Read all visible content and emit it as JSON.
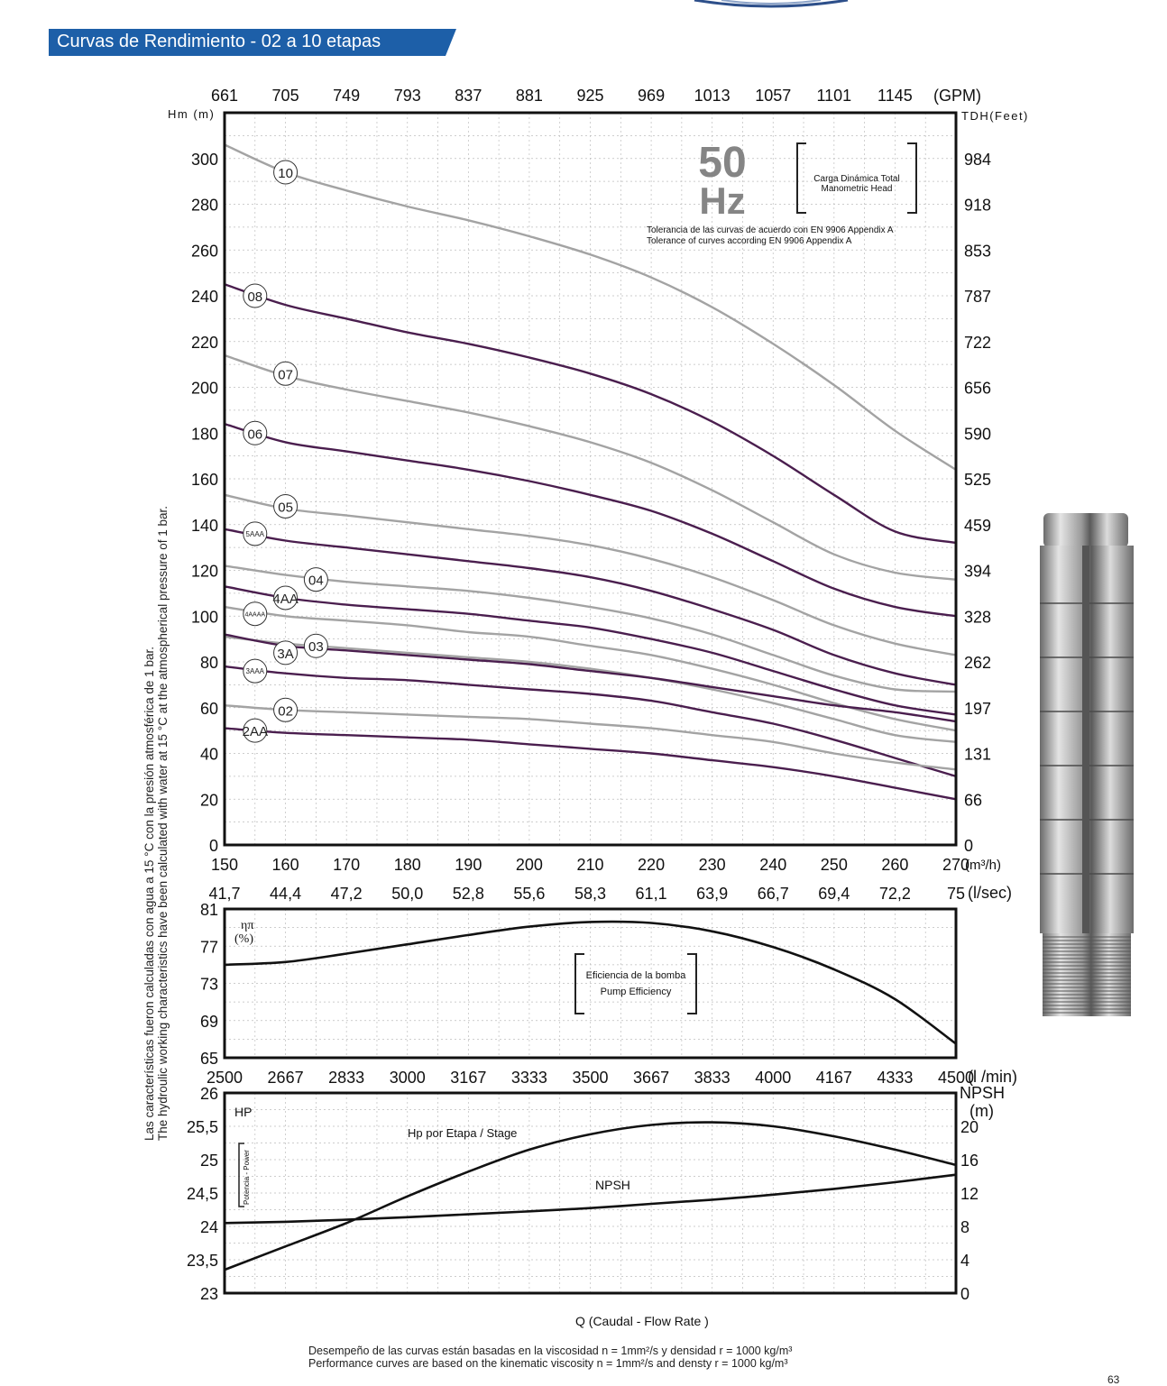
{
  "header": {
    "title": "Curvas de Rendimiento - 02 a 10 etapas"
  },
  "side_note": {
    "line1": "Las características fueron calculadas con agua a 15 °C  con la presión atmosférica de 1 bar.",
    "line2": "The hydroulic working characteristics have been calculated with water at 15 °C at the atmospherical pressure of 1 bar."
  },
  "footer": {
    "line1": "Desempeño de las curvas están basadas en la viscosidad n = 1mm²/s y densidad r = 1000 kg/m³",
    "line2": "Performance curves are based on the kinematic viscosity n = 1mm²/s and densty r = 1000 kg/m³",
    "page": "63"
  },
  "colors": {
    "banner": "#1d5fa8",
    "purple": "#4a1e4e",
    "gray": "#a3a3a3",
    "frame": "#111111"
  },
  "chart_data": [
    {
      "type": "line",
      "id": "head",
      "ylabel": "Hm (m)",
      "y2label": "TDH(Feet)",
      "xlabel": "(m³/h)",
      "x2label": "(GPM)",
      "xlim": [
        150,
        270
      ],
      "ylim": [
        0,
        320
      ],
      "x_ticks": [
        "150",
        "160",
        "170",
        "180",
        "190",
        "200",
        "210",
        "220",
        "230",
        "240",
        "250",
        "260",
        "270"
      ],
      "x2_ticks": [
        "661",
        "705",
        "749",
        "793",
        "837",
        "881",
        "925",
        "969",
        "1013",
        "1057",
        "1101",
        "1145"
      ],
      "y_ticks": [
        "0",
        "20",
        "40",
        "60",
        "80",
        "100",
        "120",
        "140",
        "160",
        "180",
        "200",
        "220",
        "240",
        "260",
        "280",
        "300"
      ],
      "y2_ticks": [
        "0",
        "66",
        "131",
        "197",
        "262",
        "328",
        "394",
        "459",
        "525",
        "590",
        "656",
        "722",
        "787",
        "853",
        "918",
        "984"
      ],
      "lps_label": "(l/sec)",
      "lps_ticks": [
        "41,7",
        "44,4",
        "47,2",
        "50,0",
        "52,8",
        "55,6",
        "58,3",
        "61,1",
        "63,9",
        "66,7",
        "69,4",
        "72,2",
        "75"
      ],
      "hz": {
        "value": "50",
        "unit": "Hz"
      },
      "legend_bracket": {
        "line1": "Carga Dinámica Total",
        "line2": "Manometric Head"
      },
      "tolerance": {
        "line1": "Tolerancia de las curvas de acuerdo con EN 9906 Appendix A",
        "line2": "Tolerance of curves according EN 9906 Appendix A"
      },
      "x": [
        150,
        160,
        170,
        180,
        190,
        200,
        210,
        220,
        230,
        240,
        250,
        260,
        270
      ],
      "series": [
        {
          "name": "10",
          "color": "gray",
          "label_x": 160,
          "label_y": 294,
          "values": [
            306,
            294,
            286,
            279,
            273,
            266,
            258,
            248,
            235,
            219,
            201,
            181,
            164
          ]
        },
        {
          "name": "08",
          "color": "purple",
          "label_x": 155,
          "label_y": 240,
          "values": [
            245,
            236,
            230,
            224,
            219,
            213,
            206,
            197,
            185,
            170,
            153,
            137,
            132
          ]
        },
        {
          "name": "07",
          "color": "gray",
          "label_x": 160,
          "label_y": 206,
          "values": [
            214,
            205,
            199,
            194,
            189,
            183,
            176,
            167,
            155,
            141,
            127,
            119,
            116
          ]
        },
        {
          "name": "06",
          "color": "purple",
          "label_x": 155,
          "label_y": 180,
          "values": [
            184,
            176,
            172,
            168,
            164,
            159,
            153,
            146,
            136,
            124,
            112,
            104,
            100
          ]
        },
        {
          "name": "05",
          "color": "gray",
          "label_x": 160,
          "label_y": 148,
          "values": [
            153,
            147,
            144,
            141,
            138,
            135,
            131,
            125,
            117,
            107,
            96,
            88,
            83
          ]
        },
        {
          "name": "5AAA",
          "color": "purple",
          "label_x": 155,
          "label_y": 136,
          "values": [
            138,
            133,
            130,
            127,
            124,
            121,
            117,
            111,
            103,
            94,
            83,
            75,
            70
          ]
        },
        {
          "name": "04",
          "color": "gray",
          "label_x": 165,
          "label_y": 116,
          "values": [
            122,
            118,
            115,
            113,
            111,
            108,
            104,
            99,
            92,
            83,
            74,
            68,
            67
          ]
        },
        {
          "name": "4AA",
          "color": "purple",
          "label_x": 160,
          "label_y": 108,
          "values": [
            113,
            108,
            105,
            103,
            101,
            98,
            95,
            90,
            84,
            76,
            68,
            61,
            57
          ]
        },
        {
          "name": "4AAAA",
          "color": "gray",
          "label_x": 155,
          "label_y": 101,
          "values": [
            104,
            100,
            98,
            96,
            93,
            91,
            87,
            83,
            77,
            70,
            62,
            55,
            50
          ]
        },
        {
          "name": "03",
          "color": "gray",
          "label_x": 165,
          "label_y": 87,
          "values": [
            91,
            88,
            86,
            84,
            82,
            80,
            77,
            73,
            68,
            62,
            55,
            48,
            45
          ]
        },
        {
          "name": "3A",
          "color": "purple",
          "label_x": 160,
          "label_y": 84,
          "values": [
            92,
            87,
            85,
            83,
            81,
            79,
            76,
            73,
            69,
            65,
            61,
            58,
            54
          ]
        },
        {
          "name": "3AAA",
          "color": "purple",
          "label_x": 155,
          "label_y": 76,
          "values": [
            78,
            75,
            73,
            72,
            70,
            68,
            66,
            63,
            58,
            53,
            46,
            38,
            30
          ]
        },
        {
          "name": "02",
          "color": "gray",
          "label_x": 160,
          "label_y": 59,
          "values": [
            61,
            59,
            58,
            57,
            56,
            55,
            53,
            51,
            48,
            45,
            40,
            36,
            33
          ]
        },
        {
          "name": "2AA",
          "color": "purple",
          "label_x": 155,
          "label_y": 50,
          "values": [
            51,
            49,
            48,
            47,
            46,
            44,
            42,
            40,
            37,
            34,
            30,
            25,
            20
          ]
        }
      ]
    },
    {
      "type": "line",
      "id": "efficiency",
      "ylabel_line1": "ηπ",
      "ylabel_line2": "(%)",
      "ylim": [
        65,
        81
      ],
      "y_ticks": [
        "65",
        "69",
        "73",
        "77",
        "81"
      ],
      "legend_bracket": {
        "line1": "Eficiencia de la bomba",
        "line2": "Pump Efficiency"
      },
      "x": [
        150,
        160,
        170,
        180,
        190,
        200,
        210,
        220,
        230,
        240,
        250,
        260,
        270
      ],
      "series": [
        {
          "name": "",
          "values": [
            75.0,
            75.3,
            76.2,
            77.2,
            78.2,
            79.1,
            79.6,
            79.5,
            78.6,
            76.9,
            74.5,
            71.3,
            66.5
          ]
        }
      ]
    },
    {
      "type": "line",
      "id": "power",
      "xlabel": "(l /min)",
      "x_ticks": [
        "2500",
        "2667",
        "2833",
        "3000",
        "3167",
        "3333",
        "3500",
        "3667",
        "3833",
        "4000",
        "4167",
        "4333",
        "4500"
      ],
      "ylabel": "HP",
      "ylabel_side": "Potencia - Power",
      "y2label_line1": "NPSH",
      "y2label_line2": "(m)",
      "ylim": [
        23,
        26
      ],
      "y2lim": [
        0,
        24
      ],
      "y_ticks": [
        "23",
        "23,5",
        "24",
        "24,5",
        "25",
        "25,5",
        "26"
      ],
      "y2_ticks": [
        "0",
        "4",
        "8",
        "12",
        "16",
        "20"
      ],
      "hp_label": "Hp por Etapa / Stage",
      "npsh_label": "NPSH",
      "flow_label": "Q      (Caudal - Flow Rate )",
      "x": [
        150,
        160,
        170,
        180,
        190,
        200,
        210,
        220,
        230,
        240,
        250,
        260,
        270
      ],
      "series": [
        {
          "name": "Hp por Etapa / Stage",
          "axis": "left",
          "values": [
            23.35,
            23.7,
            24.05,
            24.45,
            24.82,
            25.15,
            25.38,
            25.52,
            25.56,
            25.5,
            25.35,
            25.15,
            24.92
          ]
        },
        {
          "name": "NPSH",
          "axis": "right",
          "values": [
            8.4,
            8.55,
            8.8,
            9.1,
            9.45,
            9.8,
            10.2,
            10.7,
            11.2,
            11.8,
            12.5,
            13.3,
            14.2
          ]
        }
      ]
    }
  ]
}
